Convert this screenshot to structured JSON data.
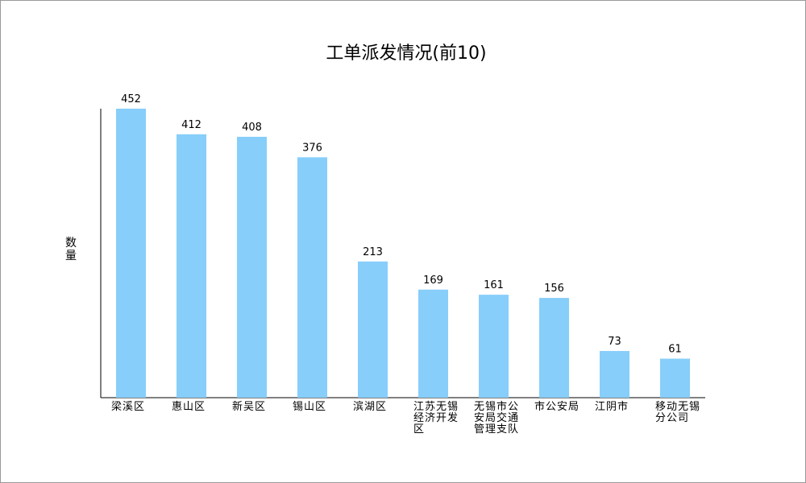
{
  "chart_data": {
    "type": "bar",
    "title": "工单派发情况(前10)",
    "y_label": "数量",
    "categories": [
      "梁溪区",
      "惠山区",
      "新吴区",
      "锡山区",
      "滨湖区",
      "江苏无锡经济开发区",
      "无锡市公安局交通管理支队",
      "市公安局",
      "江阴市",
      "移动无锡分公司"
    ],
    "values": [
      452,
      412,
      408,
      376,
      213,
      169,
      161,
      156,
      73,
      61
    ],
    "color": "#87cefa",
    "ylim": [
      0,
      452
    ]
  }
}
